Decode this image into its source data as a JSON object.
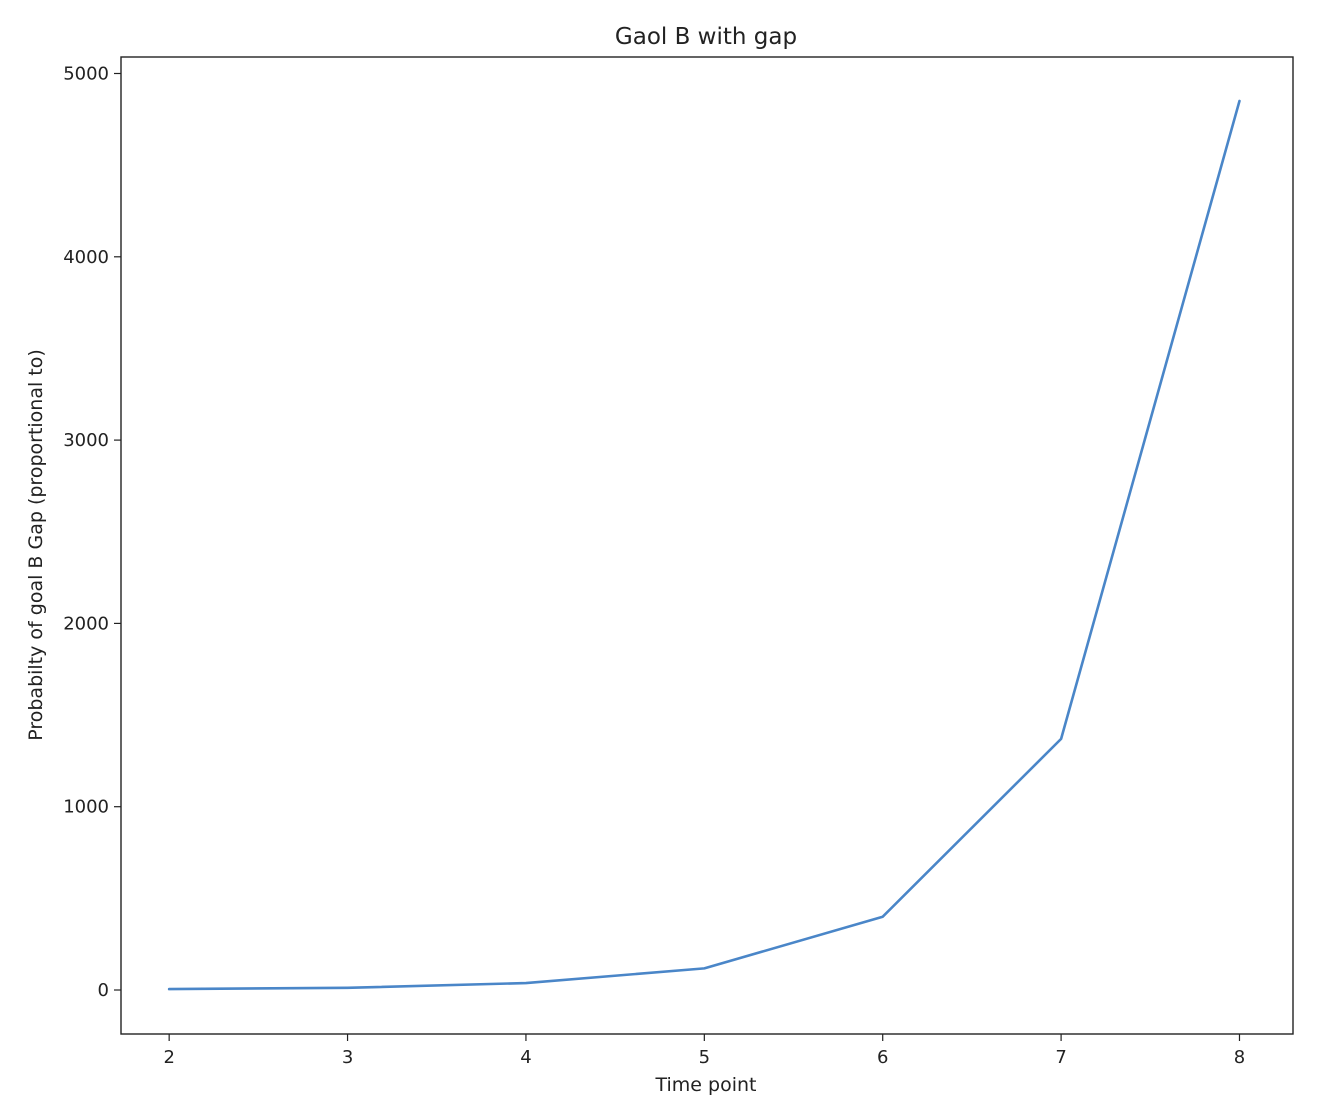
{
  "chart_data": {
    "type": "line",
    "title": "Gaol B with gap",
    "xlabel": "Time point",
    "ylabel": "Probabilty of goal B Gap (proportional to)",
    "x": [
      2,
      3,
      4,
      5,
      6,
      7,
      8
    ],
    "series": [
      {
        "values": [
          5,
          12,
          38,
          118,
          400,
          1370,
          4850
        ],
        "color": "#4a86c8"
      }
    ],
    "xticks": [
      "2",
      "3",
      "4",
      "5",
      "6",
      "7",
      "8"
    ],
    "yticks": [
      "0",
      "1000",
      "2000",
      "3000",
      "4000",
      "5000"
    ],
    "xlim": [
      1.73,
      8.3
    ],
    "ylim": [
      -240,
      5090
    ],
    "grid": false,
    "legend": "none"
  }
}
